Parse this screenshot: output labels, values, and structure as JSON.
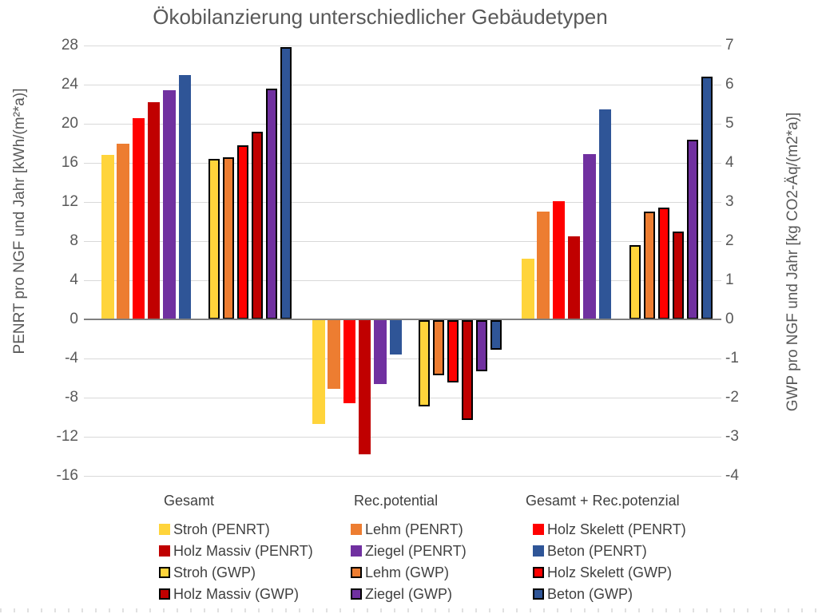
{
  "title": "Ökobilanzierung unterschiedlicher Gebäudetypen",
  "left_axis": {
    "label": "PENRT pro NGF und Jahr [kWh/(m²*a)]",
    "ticks": [
      "28",
      "24",
      "20",
      "16",
      "12",
      "8",
      "4",
      "0",
      "-4",
      "-8",
      "-12",
      "-16"
    ]
  },
  "right_axis": {
    "label": "GWP pro NGF und Jahr [kg CO2-Äq/(m2*a)]",
    "ticks": [
      "7",
      "6",
      "5",
      "4",
      "3",
      "2",
      "1",
      "0",
      "-1",
      "-2",
      "-3",
      "-4"
    ]
  },
  "chart_data": {
    "type": "bar",
    "title": "Ökobilanzierung unterschiedlicher Gebäudetypen",
    "categories": [
      "Gesamt",
      "Rec.potential",
      "Gesamt + Rec.potenzial"
    ],
    "left_ylabel": "PENRT pro NGF und Jahr [kWh/(m²*a)]",
    "right_ylabel": "GWP pro NGF und Jahr [kg CO2-Äq/(m2*a)]",
    "left_ylim": [
      -16,
      28
    ],
    "right_ylim": [
      -4,
      7
    ],
    "grid": true,
    "legend_position": "bottom",
    "series": [
      {
        "name": "Stroh (PENRT)",
        "axis": "left",
        "color": "#FFD43B",
        "outlined": false,
        "values": [
          16.8,
          -10.6,
          6.2
        ]
      },
      {
        "name": "Lehm (PENRT)",
        "axis": "left",
        "color": "#ED7D31",
        "outlined": false,
        "values": [
          18.0,
          -7.0,
          11.0
        ]
      },
      {
        "name": "Holz Skelett (PENRT)",
        "axis": "left",
        "color": "#FF0000",
        "outlined": false,
        "values": [
          20.6,
          -8.5,
          12.1
        ]
      },
      {
        "name": "Holz Massiv (PENRT)",
        "axis": "left",
        "color": "#C00000",
        "outlined": false,
        "values": [
          22.2,
          -13.7,
          8.5
        ]
      },
      {
        "name": "Ziegel (PENRT)",
        "axis": "left",
        "color": "#7030A0",
        "outlined": false,
        "values": [
          23.4,
          -6.5,
          16.9
        ]
      },
      {
        "name": "Beton (PENRT)",
        "axis": "left",
        "color": "#2F5597",
        "outlined": false,
        "values": [
          25.0,
          -3.5,
          21.5
        ]
      },
      {
        "name": "Stroh (GWP)",
        "axis": "right",
        "color": "#FFD43B",
        "outlined": true,
        "values": [
          4.1,
          -2.2,
          1.9
        ]
      },
      {
        "name": "Lehm (GWP)",
        "axis": "right",
        "color": "#ED7D31",
        "outlined": true,
        "values": [
          4.15,
          -1.4,
          2.75
        ]
      },
      {
        "name": "Holz Skelett (GWP)",
        "axis": "right",
        "color": "#FF0000",
        "outlined": true,
        "values": [
          4.45,
          -1.6,
          2.85
        ]
      },
      {
        "name": "Holz Massiv (GWP)",
        "axis": "right",
        "color": "#C00000",
        "outlined": true,
        "values": [
          4.8,
          -2.55,
          2.25
        ]
      },
      {
        "name": "Ziegel (GWP)",
        "axis": "right",
        "color": "#7030A0",
        "outlined": true,
        "values": [
          5.9,
          -1.3,
          4.6
        ]
      },
      {
        "name": "Beton (GWP)",
        "axis": "right",
        "color": "#2F5597",
        "outlined": true,
        "values": [
          6.95,
          -0.75,
          6.2
        ]
      }
    ]
  },
  "colors": {
    "title_text": "#595959",
    "tick_text": "#595959",
    "legend_text": "#404040",
    "gridline": "#D9D9D9",
    "zero_axis": "#7F7F7F",
    "gwp_outline": "#000000"
  },
  "legend": {
    "rows": [
      [
        "Stroh (PENRT)",
        "Lehm (PENRT)",
        "Holz Skelett (PENRT)"
      ],
      [
        "Holz Massiv (PENRT)",
        "Ziegel (PENRT)",
        "Beton (PENRT)"
      ],
      [
        "Stroh (GWP)",
        "Lehm (GWP)",
        "Holz Skelett (GWP)"
      ],
      [
        "Holz Massiv (GWP)",
        "Ziegel (GWP)",
        "Beton (GWP)"
      ]
    ]
  }
}
